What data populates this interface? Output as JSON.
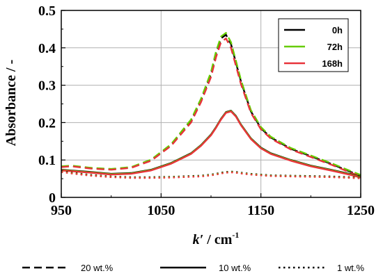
{
  "chart_data": {
    "type": "line",
    "title": "",
    "xlabel_main": "k′",
    "xlabel_unit": " / cm",
    "xlabel_sup": "-1",
    "ylabel": "Absorbance / -",
    "xlim": [
      950,
      1250
    ],
    "ylim": [
      0,
      0.5
    ],
    "xticks": [
      950,
      1050,
      1150,
      1250
    ],
    "yticks": [
      "0",
      "0.1",
      "0.2",
      "0.3",
      "0.4",
      "0.5"
    ],
    "yticks_values": [
      0,
      0.1,
      0.2,
      0.3,
      0.4,
      0.5
    ],
    "grid": true,
    "legend_position": "top-right",
    "time_legend": [
      {
        "label": "0h",
        "color": "#000000"
      },
      {
        "label": "72h",
        "color": "#66cc00"
      },
      {
        "label": "168h",
        "color": "#e8333a"
      }
    ],
    "style_legend": [
      {
        "label": "20 wt.%",
        "dash": "dashed"
      },
      {
        "label": "10 wt.%",
        "dash": "solid"
      },
      {
        "label": "1 wt.%",
        "dash": "dotted"
      }
    ],
    "x": [
      950,
      960,
      980,
      1000,
      1020,
      1040,
      1060,
      1080,
      1090,
      1100,
      1105,
      1110,
      1115,
      1120,
      1125,
      1130,
      1140,
      1150,
      1160,
      1180,
      1200,
      1220,
      1240,
      1250
    ],
    "series": [
      {
        "concentration": "20 wt.%",
        "time": "0h",
        "color": "#000000",
        "dash": "dashed",
        "values": [
          0.082,
          0.084,
          0.078,
          0.075,
          0.08,
          0.1,
          0.14,
          0.205,
          0.26,
          0.33,
          0.385,
          0.425,
          0.435,
          0.41,
          0.36,
          0.31,
          0.23,
          0.185,
          0.16,
          0.13,
          0.11,
          0.09,
          0.068,
          0.058
        ]
      },
      {
        "concentration": "20 wt.%",
        "time": "72h",
        "color": "#66cc00",
        "dash": "dashed",
        "values": [
          0.083,
          0.085,
          0.079,
          0.076,
          0.081,
          0.101,
          0.142,
          0.208,
          0.264,
          0.335,
          0.39,
          0.43,
          0.44,
          0.415,
          0.365,
          0.314,
          0.233,
          0.188,
          0.162,
          0.132,
          0.112,
          0.092,
          0.07,
          0.06
        ]
      },
      {
        "concentration": "20 wt.%",
        "time": "168h",
        "color": "#e8333a",
        "dash": "dashed",
        "values": [
          0.081,
          0.083,
          0.077,
          0.074,
          0.079,
          0.098,
          0.138,
          0.2,
          0.255,
          0.322,
          0.375,
          0.415,
          0.425,
          0.4,
          0.352,
          0.303,
          0.226,
          0.182,
          0.157,
          0.128,
          0.108,
          0.088,
          0.066,
          0.056
        ]
      },
      {
        "concentration": "10 wt.%",
        "time": "0h",
        "color": "#000000",
        "dash": "solid",
        "values": [
          0.074,
          0.072,
          0.068,
          0.063,
          0.065,
          0.074,
          0.092,
          0.118,
          0.14,
          0.168,
          0.188,
          0.21,
          0.228,
          0.232,
          0.218,
          0.195,
          0.158,
          0.133,
          0.118,
          0.1,
          0.085,
          0.074,
          0.062,
          0.055
        ]
      },
      {
        "concentration": "10 wt.%",
        "time": "72h",
        "color": "#66cc00",
        "dash": "solid",
        "values": [
          0.073,
          0.071,
          0.067,
          0.062,
          0.064,
          0.073,
          0.091,
          0.117,
          0.139,
          0.167,
          0.187,
          0.209,
          0.227,
          0.231,
          0.217,
          0.194,
          0.157,
          0.132,
          0.117,
          0.099,
          0.084,
          0.073,
          0.061,
          0.054
        ]
      },
      {
        "concentration": "10 wt.%",
        "time": "168h",
        "color": "#e8333a",
        "dash": "solid",
        "values": [
          0.072,
          0.07,
          0.066,
          0.061,
          0.063,
          0.072,
          0.09,
          0.116,
          0.138,
          0.166,
          0.186,
          0.208,
          0.226,
          0.23,
          0.216,
          0.193,
          0.156,
          0.131,
          0.116,
          0.098,
          0.083,
          0.072,
          0.06,
          0.053
        ]
      },
      {
        "concentration": "1 wt.%",
        "time": "0h",
        "color": "#000000",
        "dash": "dotted",
        "values": [
          0.07,
          0.066,
          0.06,
          0.056,
          0.054,
          0.054,
          0.055,
          0.057,
          0.058,
          0.061,
          0.063,
          0.066,
          0.068,
          0.069,
          0.068,
          0.066,
          0.063,
          0.061,
          0.059,
          0.058,
          0.057,
          0.056,
          0.054,
          0.053
        ]
      },
      {
        "concentration": "1 wt.%",
        "time": "72h",
        "color": "#66cc00",
        "dash": "dotted",
        "values": [
          0.069,
          0.065,
          0.059,
          0.055,
          0.053,
          0.053,
          0.054,
          0.056,
          0.057,
          0.06,
          0.062,
          0.065,
          0.067,
          0.068,
          0.067,
          0.065,
          0.062,
          0.06,
          0.058,
          0.057,
          0.056,
          0.055,
          0.053,
          0.052
        ]
      },
      {
        "concentration": "1 wt.%",
        "time": "168h",
        "color": "#e8333a",
        "dash": "dotted",
        "values": [
          0.068,
          0.064,
          0.058,
          0.054,
          0.052,
          0.052,
          0.053,
          0.055,
          0.056,
          0.059,
          0.061,
          0.064,
          0.066,
          0.067,
          0.066,
          0.064,
          0.061,
          0.059,
          0.057,
          0.056,
          0.055,
          0.054,
          0.052,
          0.051
        ]
      }
    ]
  }
}
